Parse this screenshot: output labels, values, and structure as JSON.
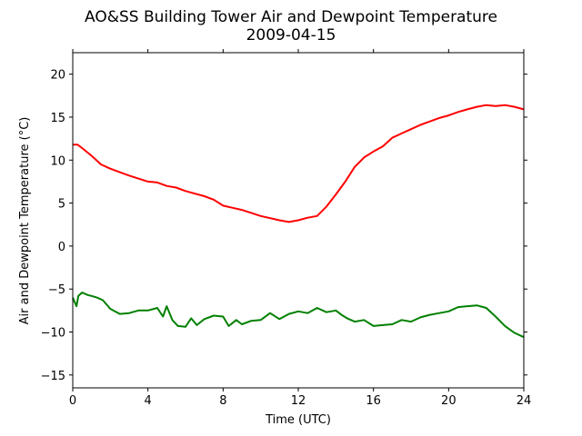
{
  "chart_data": {
    "type": "line",
    "title": "AO&SS Building Tower Air and Dewpoint Temperature",
    "subtitle": "2009-04-15",
    "xlabel": "Time (UTC)",
    "ylabel": "Air and Dewpoint Temperature (°C)",
    "xlim": [
      0,
      24
    ],
    "ylim": [
      -16.5,
      22.5
    ],
    "x_ticks": [
      0,
      4,
      8,
      12,
      16,
      20,
      24
    ],
    "x_tick_labels": [
      "0",
      "4",
      "8",
      "12",
      "16",
      "20",
      "24"
    ],
    "y_ticks": [
      -15,
      -10,
      -5,
      0,
      5,
      10,
      15,
      20
    ],
    "y_tick_labels": [
      "−15",
      "−10",
      "−5",
      "0",
      "5",
      "10",
      "15",
      "20"
    ],
    "grid": false,
    "series": [
      {
        "color": "#ff0000",
        "x": [
          0,
          0.25,
          0.5,
          1,
          1.5,
          2,
          3,
          4,
          4.5,
          5,
          5.5,
          6,
          7,
          7.5,
          8,
          9,
          10,
          11,
          11.5,
          12,
          12.5,
          13,
          13.5,
          14,
          14.5,
          15,
          15.5,
          16,
          16.5,
          17,
          17.5,
          18,
          18.5,
          19,
          19.5,
          20,
          20.5,
          21,
          21.5,
          22,
          22.5,
          23,
          23.5,
          24
        ],
        "y": [
          11.8,
          11.8,
          11.4,
          10.5,
          9.5,
          9.0,
          8.2,
          7.5,
          7.4,
          7.0,
          6.8,
          6.4,
          5.8,
          5.4,
          4.7,
          4.2,
          3.5,
          3.0,
          2.8,
          3.0,
          3.3,
          3.5,
          4.6,
          6.0,
          7.5,
          9.2,
          10.3,
          11.0,
          11.6,
          12.6,
          13.1,
          13.6,
          14.1,
          14.5,
          14.9,
          15.2,
          15.6,
          15.9,
          16.2,
          16.4,
          16.3,
          16.4,
          16.2,
          15.9
        ]
      },
      {
        "color": "#008000",
        "x": [
          0,
          0.2,
          0.3,
          0.5,
          0.8,
          1,
          1.3,
          1.6,
          2,
          2.5,
          3,
          3.5,
          4,
          4.5,
          4.8,
          5,
          5.3,
          5.6,
          6,
          6.3,
          6.6,
          7,
          7.5,
          8,
          8.3,
          8.7,
          9,
          9.5,
          10,
          10.5,
          11,
          11.5,
          12,
          12.5,
          13,
          13.5,
          14,
          14.3,
          14.6,
          15,
          15.5,
          16,
          16.5,
          17,
          17.5,
          18,
          18.5,
          19,
          19.5,
          20,
          20.5,
          21,
          21.5,
          22,
          22.5,
          23,
          23.5,
          24
        ],
        "y": [
          -6.0,
          -7.0,
          -5.8,
          -5.4,
          -5.7,
          -5.8,
          -6.0,
          -6.3,
          -7.3,
          -7.9,
          -7.8,
          -7.5,
          -7.5,
          -7.2,
          -8.2,
          -7.0,
          -8.6,
          -9.3,
          -9.4,
          -8.4,
          -9.2,
          -8.5,
          -8.1,
          -8.2,
          -9.3,
          -8.6,
          -9.1,
          -8.7,
          -8.6,
          -7.8,
          -8.5,
          -7.9,
          -7.6,
          -7.8,
          -7.2,
          -7.7,
          -7.5,
          -8.0,
          -8.4,
          -8.8,
          -8.6,
          -9.3,
          -9.2,
          -9.1,
          -8.6,
          -8.8,
          -8.3,
          -8.0,
          -7.8,
          -7.6,
          -7.1,
          -7.0,
          -6.9,
          -7.2,
          -8.2,
          -9.3,
          -10.1,
          -10.6
        ]
      }
    ]
  }
}
